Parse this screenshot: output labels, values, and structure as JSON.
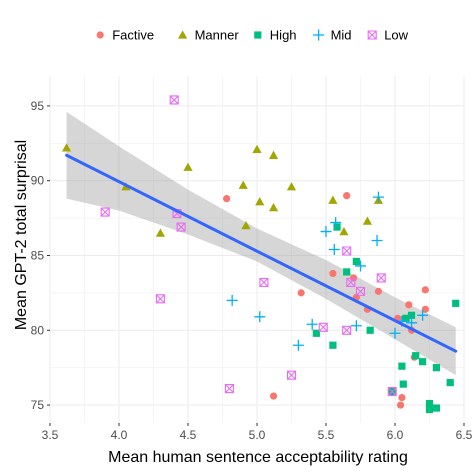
{
  "chart_data": {
    "type": "scatter",
    "title": "",
    "xlabel": "Mean human sentence acceptability rating",
    "ylabel": "Mean GPT-2 total surprisal",
    "xlim": [
      3.5,
      6.5
    ],
    "ylim": [
      73.8,
      97.0
    ],
    "x_ticks": [
      3.5,
      4.0,
      4.5,
      5.0,
      5.5,
      6.0,
      6.5
    ],
    "y_ticks": [
      75,
      80,
      85,
      90,
      95
    ],
    "x_tick_labels": [
      "3.5",
      "4.0",
      "4.5",
      "5.0",
      "5.5",
      "6.0",
      "6.5"
    ],
    "y_tick_labels": [
      "75",
      "80",
      "85",
      "90",
      "95"
    ],
    "grid": true,
    "legend_position": "top",
    "background": "#ffffff",
    "grid_color": "#ebebeb",
    "series": [
      {
        "name": "Factive",
        "marker": "circle",
        "color": "#f8766d",
        "points": [
          [
            4.78,
            88.8
          ],
          [
            5.12,
            75.6
          ],
          [
            5.32,
            82.5
          ],
          [
            5.55,
            83.8
          ],
          [
            5.65,
            89.0
          ],
          [
            5.7,
            83.5
          ],
          [
            5.72,
            82.2
          ],
          [
            5.8,
            81.4
          ],
          [
            5.88,
            82.6
          ],
          [
            6.02,
            80.8
          ],
          [
            6.04,
            75.0
          ],
          [
            6.1,
            81.7
          ],
          [
            6.12,
            80.0
          ],
          [
            6.22,
            82.7
          ],
          [
            6.22,
            81.4
          ],
          [
            6.05,
            75.5
          ],
          [
            6.14,
            78.2
          ]
        ]
      },
      {
        "name": "Manner",
        "marker": "triangle",
        "color": "#a3a500",
        "points": [
          [
            3.62,
            92.2
          ],
          [
            4.05,
            89.6
          ],
          [
            4.3,
            86.5
          ],
          [
            4.5,
            90.9
          ],
          [
            4.9,
            89.7
          ],
          [
            4.92,
            87.0
          ],
          [
            5.0,
            92.1
          ],
          [
            5.02,
            88.6
          ],
          [
            5.12,
            91.7
          ],
          [
            5.12,
            88.2
          ],
          [
            5.25,
            89.6
          ],
          [
            5.55,
            88.7
          ],
          [
            5.63,
            86.6
          ],
          [
            5.8,
            87.3
          ],
          [
            5.88,
            88.7
          ]
        ]
      },
      {
        "name": "High",
        "marker": "square",
        "color": "#00bf7d",
        "points": [
          [
            5.43,
            79.8
          ],
          [
            5.55,
            79.0
          ],
          [
            5.65,
            83.9
          ],
          [
            5.58,
            86.9
          ],
          [
            5.72,
            84.6
          ],
          [
            5.82,
            80.0
          ],
          [
            5.98,
            75.9
          ],
          [
            6.05,
            77.6
          ],
          [
            6.06,
            76.4
          ],
          [
            6.08,
            80.8
          ],
          [
            6.12,
            81.0
          ],
          [
            6.15,
            78.3
          ],
          [
            6.2,
            77.9
          ],
          [
            6.25,
            74.9
          ],
          [
            6.25,
            74.7
          ],
          [
            6.25,
            75.1
          ],
          [
            6.3,
            74.8
          ],
          [
            6.3,
            77.5
          ],
          [
            6.4,
            76.5
          ],
          [
            6.44,
            81.8
          ]
        ]
      },
      {
        "name": "Mid",
        "marker": "plus",
        "color": "#00b0f6",
        "points": [
          [
            4.82,
            82.0
          ],
          [
            5.02,
            80.9
          ],
          [
            5.3,
            79.0
          ],
          [
            5.4,
            80.4
          ],
          [
            5.5,
            86.6
          ],
          [
            5.57,
            87.2
          ],
          [
            5.56,
            85.4
          ],
          [
            5.72,
            80.3
          ],
          [
            5.75,
            84.3
          ],
          [
            5.87,
            86.0
          ],
          [
            5.88,
            88.9
          ],
          [
            6.0,
            79.8
          ],
          [
            6.05,
            80.6
          ],
          [
            6.12,
            80.5
          ],
          [
            6.2,
            81.0
          ]
        ]
      },
      {
        "name": "Low",
        "marker": "boxx",
        "color": "#e76bf3",
        "points": [
          [
            4.4,
            95.4
          ],
          [
            3.9,
            87.9
          ],
          [
            4.42,
            87.8
          ],
          [
            4.45,
            86.9
          ],
          [
            4.3,
            82.1
          ],
          [
            4.8,
            76.1
          ],
          [
            5.05,
            83.2
          ],
          [
            5.25,
            77.0
          ],
          [
            5.48,
            80.2
          ],
          [
            5.65,
            80.0
          ],
          [
            5.65,
            85.3
          ],
          [
            5.68,
            83.2
          ],
          [
            5.75,
            82.6
          ],
          [
            5.9,
            83.5
          ],
          [
            5.98,
            75.9
          ]
        ]
      }
    ],
    "fit": {
      "method": "linear",
      "color": "#3366ff",
      "band_color": "#999999",
      "line": [
        [
          3.62,
          91.7
        ],
        [
          6.44,
          78.6
        ]
      ],
      "band_upper": [
        [
          3.62,
          94.6
        ],
        [
          4.0,
          92.3
        ],
        [
          4.5,
          89.4
        ],
        [
          5.0,
          86.8
        ],
        [
          5.5,
          84.7
        ],
        [
          6.0,
          82.2
        ],
        [
          6.44,
          80.2
        ]
      ],
      "band_lower": [
        [
          3.62,
          88.8
        ],
        [
          4.0,
          88.0
        ],
        [
          4.5,
          86.4
        ],
        [
          5.0,
          84.6
        ],
        [
          5.5,
          82.1
        ],
        [
          6.0,
          79.4
        ],
        [
          6.44,
          77.0
        ]
      ]
    }
  }
}
